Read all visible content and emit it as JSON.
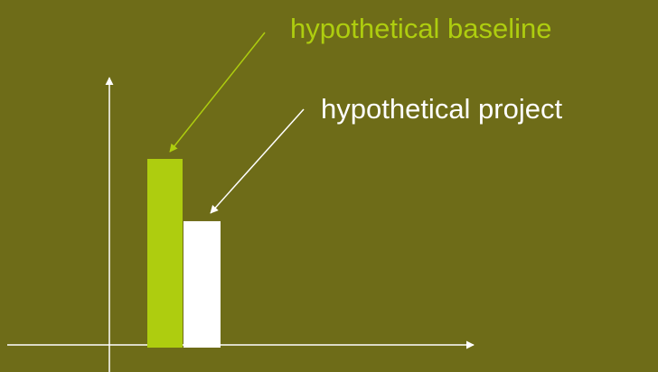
{
  "slide": {
    "background_color": "#6e6c18"
  },
  "labels": {
    "baseline": "hypothetical baseline",
    "project": "hypothetical project"
  },
  "colors": {
    "baseline": "#aecd0f",
    "project": "#ffffff",
    "axes": "#ffffff"
  },
  "bars": {
    "baseline_level": 1.0,
    "project_level": 0.67
  }
}
